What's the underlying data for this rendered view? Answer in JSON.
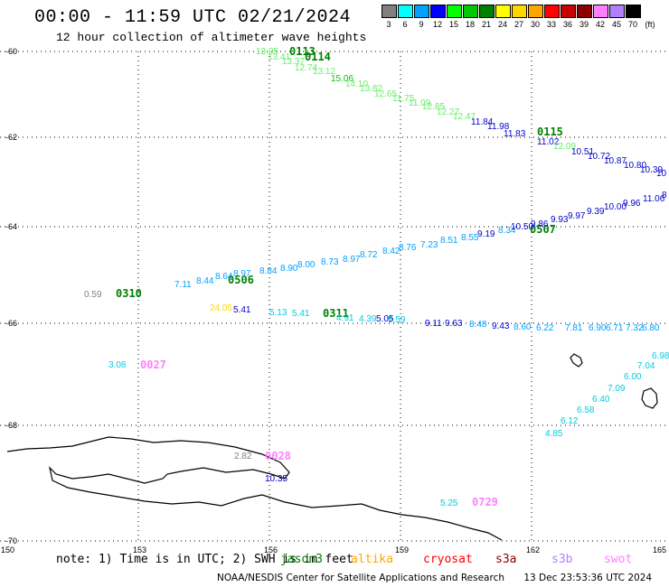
{
  "title": "00:00 - 11:59 UTC 02/21/2024",
  "subtitle": "12 hour collection of altimeter wave heights",
  "legend": {
    "unit": "(ft)",
    "swatches": [
      {
        "label": "3",
        "color": "#808080"
      },
      {
        "label": "6",
        "color": "#00ffff"
      },
      {
        "label": "9",
        "color": "#00a0ff"
      },
      {
        "label": "12",
        "color": "#0000ff"
      },
      {
        "label": "15",
        "color": "#00ff00"
      },
      {
        "label": "18",
        "color": "#00c800"
      },
      {
        "label": "21",
        "color": "#008000"
      },
      {
        "label": "24",
        "color": "#ffff00"
      },
      {
        "label": "27",
        "color": "#ffd700"
      },
      {
        "label": "30",
        "color": "#ffa500"
      },
      {
        "label": "33",
        "color": "#ff0000"
      },
      {
        "label": "36",
        "color": "#c80000"
      },
      {
        "label": "39",
        "color": "#8b0000"
      },
      {
        "label": "42",
        "color": "#ff80ff"
      },
      {
        "label": "45",
        "color": "#b080ff"
      },
      {
        "label": "70",
        "color": "#000000"
      }
    ]
  },
  "axes": {
    "lat_labels": [
      "-60",
      "-62",
      "-64",
      "-66",
      "-68",
      "-70"
    ],
    "lon_labels": [
      "150",
      "153",
      "156",
      "159",
      "162",
      "165"
    ]
  },
  "note_text": "note: 1) Time is in UTC; 2) SWH is in feet",
  "satellites": [
    {
      "name": "jason3",
      "color": "#008000"
    },
    {
      "name": "altika",
      "color": "#ffa500"
    },
    {
      "name": "cryosat",
      "color": "#ff0000"
    },
    {
      "name": "s3a",
      "color": "#8b0000"
    },
    {
      "name": "s3b",
      "color": "#b080ff"
    },
    {
      "name": "swot",
      "color": "#ff80ff"
    }
  ],
  "footer": {
    "org": "NOAA/NESDIS Center for Satellite Applications and Research",
    "timestamp": "13 Dec 23:53:36 UTC 2024"
  },
  "track_times": [
    {
      "text": "0113",
      "color": "#008000"
    },
    {
      "text": "0114",
      "color": "#008000"
    },
    {
      "text": "0115",
      "color": "#008000"
    },
    {
      "text": "0507",
      "color": "#008000"
    },
    {
      "text": "0506",
      "color": "#008000"
    },
    {
      "text": "0310",
      "color": "#008000"
    },
    {
      "text": "0311",
      "color": "#008000"
    },
    {
      "text": "0027",
      "color": "#ff80ff"
    },
    {
      "text": "0028",
      "color": "#ff80ff"
    },
    {
      "text": "0729",
      "color": "#ff80ff"
    }
  ],
  "wave_heights": [
    {
      "text": "13.05",
      "color": "#66ee66"
    },
    {
      "text": "13.41",
      "color": "#66ee66"
    },
    {
      "text": "13.37",
      "color": "#66ee66"
    },
    {
      "text": "12.74",
      "color": "#66ee66"
    },
    {
      "text": "13.12",
      "color": "#66ee66"
    },
    {
      "text": "15.06",
      "color": "#00c800"
    },
    {
      "text": "14.10",
      "color": "#66ee66"
    },
    {
      "text": "13.82",
      "color": "#66ee66"
    },
    {
      "text": "12.65",
      "color": "#66ee66"
    },
    {
      "text": "11.75",
      "color": "#66ee66"
    },
    {
      "text": "11.09",
      "color": "#66ee66"
    },
    {
      "text": "12.85",
      "color": "#66ee66"
    },
    {
      "text": "12.27",
      "color": "#66ee66"
    },
    {
      "text": "12.47",
      "color": "#66ee66"
    },
    {
      "text": "11.84",
      "color": "#0000cc"
    },
    {
      "text": "11.98",
      "color": "#0000cc"
    },
    {
      "text": "11.83",
      "color": "#0000cc"
    },
    {
      "text": "11.02",
      "color": "#0000cc"
    },
    {
      "text": "12.09",
      "color": "#66ee66"
    },
    {
      "text": "10.51",
      "color": "#0000cc"
    },
    {
      "text": "10.72",
      "color": "#0000cc"
    },
    {
      "text": "10.87",
      "color": "#0000cc"
    },
    {
      "text": "10.80",
      "color": "#0000cc"
    },
    {
      "text": "10.39",
      "color": "#0000cc"
    },
    {
      "text": "10",
      "color": "#0000cc"
    },
    {
      "text": "7.11",
      "color": "#00a0ff"
    },
    {
      "text": "8.44",
      "color": "#00a0ff"
    },
    {
      "text": "8.64",
      "color": "#00a0ff"
    },
    {
      "text": "8.97",
      "color": "#00a0ff"
    },
    {
      "text": "8.84",
      "color": "#00a0ff"
    },
    {
      "text": "8.90",
      "color": "#00a0ff"
    },
    {
      "text": "8.00",
      "color": "#00a0ff"
    },
    {
      "text": "8.73",
      "color": "#00a0ff"
    },
    {
      "text": "8.97",
      "color": "#00a0ff"
    },
    {
      "text": "8.72",
      "color": "#00a0ff"
    },
    {
      "text": "8.42",
      "color": "#00a0ff"
    },
    {
      "text": "8.76",
      "color": "#00a0ff"
    },
    {
      "text": "7.23",
      "color": "#00a0ff"
    },
    {
      "text": "8.51",
      "color": "#00a0ff"
    },
    {
      "text": "8.55",
      "color": "#00a0ff"
    },
    {
      "text": "9.19",
      "color": "#0000cc"
    },
    {
      "text": "8.34",
      "color": "#00a0ff"
    },
    {
      "text": "10.50",
      "color": "#0000cc"
    },
    {
      "text": "9.86",
      "color": "#0000cc"
    },
    {
      "text": "9.93",
      "color": "#0000cc"
    },
    {
      "text": "9.97",
      "color": "#0000cc"
    },
    {
      "text": "9.39",
      "color": "#0000cc"
    },
    {
      "text": "10.00",
      "color": "#0000cc"
    },
    {
      "text": "9.96",
      "color": "#0000cc"
    },
    {
      "text": "11.06",
      "color": "#0000cc"
    },
    {
      "text": "8",
      "color": "#0000cc"
    },
    {
      "text": "0.59",
      "color": "#808080"
    },
    {
      "text": "24.05",
      "color": "#ffd700"
    },
    {
      "text": "5.41",
      "color": "#0000cc"
    },
    {
      "text": "5.13",
      "color": "#00ccdd"
    },
    {
      "text": "5.41",
      "color": "#00ccdd"
    },
    {
      "text": "4.91",
      "color": "#00ccdd"
    },
    {
      "text": "4.39",
      "color": "#00ccdd"
    },
    {
      "text": "5.05",
      "color": "#0000cc"
    },
    {
      "text": "5.59",
      "color": "#00ccdd"
    },
    {
      "text": "9.11",
      "color": "#0000cc"
    },
    {
      "text": "9.63",
      "color": "#0000cc"
    },
    {
      "text": "8.48",
      "color": "#00a0ff"
    },
    {
      "text": "9.43",
      "color": "#0000cc"
    },
    {
      "text": "8.60",
      "color": "#00a0ff"
    },
    {
      "text": "6.22",
      "color": "#00a0ff"
    },
    {
      "text": "7.81",
      "color": "#00a0ff"
    },
    {
      "text": "6.90",
      "color": "#00a0ff"
    },
    {
      "text": "6.71",
      "color": "#00a0ff"
    },
    {
      "text": "7.32",
      "color": "#00a0ff"
    },
    {
      "text": "6.80",
      "color": "#00a0ff"
    },
    {
      "text": "3.08",
      "color": "#00ccdd"
    },
    {
      "text": "2.82",
      "color": "#808080"
    },
    {
      "text": "10.35",
      "color": "#0000cc"
    },
    {
      "text": "5.25",
      "color": "#00ccdd"
    },
    {
      "text": "6.98",
      "color": "#00ccdd"
    },
    {
      "text": "7.04",
      "color": "#00ccdd"
    },
    {
      "text": "6.00",
      "color": "#00ccdd"
    },
    {
      "text": "7.09",
      "color": "#00ccdd"
    },
    {
      "text": "6.40",
      "color": "#00ccdd"
    },
    {
      "text": "6.58",
      "color": "#00ccdd"
    },
    {
      "text": "6.12",
      "color": "#00ccdd"
    },
    {
      "text": "4.85",
      "color": "#00ccdd"
    }
  ]
}
